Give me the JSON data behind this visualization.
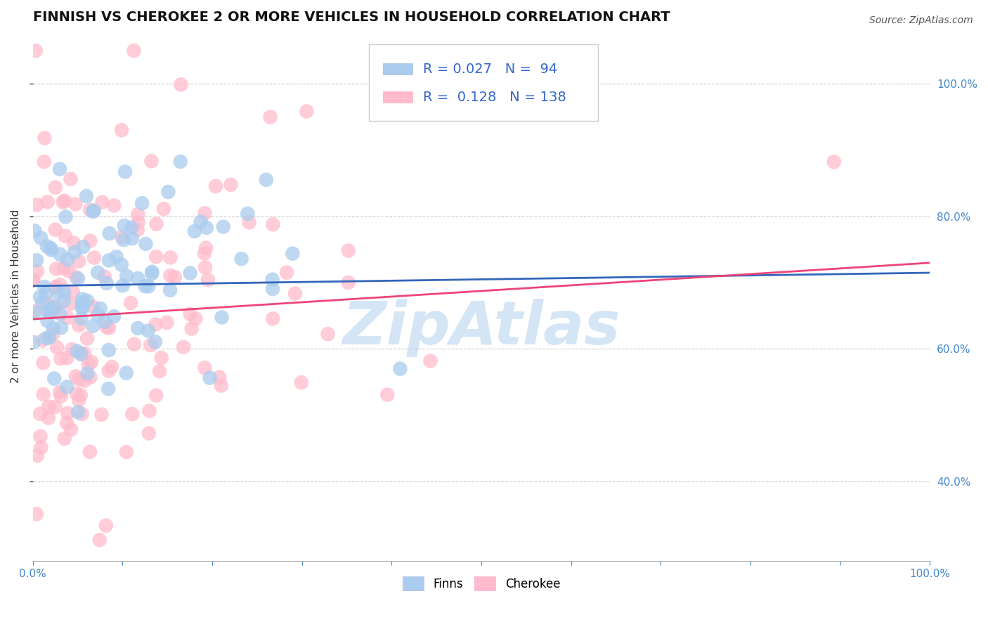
{
  "title": "FINNISH VS CHEROKEE 2 OR MORE VEHICLES IN HOUSEHOLD CORRELATION CHART",
  "source": "Source: ZipAtlas.com",
  "ylabel": "2 or more Vehicles in Household",
  "xlim": [
    0.0,
    1.0
  ],
  "ylim": [
    0.28,
    1.08
  ],
  "yticks": [
    0.4,
    0.6,
    0.8,
    1.0
  ],
  "ytick_labels": [
    "40.0%",
    "60.0%",
    "80.0%",
    "100.0%"
  ],
  "xtick_only_ends": [
    "0.0%",
    "100.0%"
  ],
  "grid_color": "#cccccc",
  "background_color": "#ffffff",
  "watermark": "ZipAtlas",
  "watermark_color": "#aaccee",
  "finns_color": "#aaccee",
  "cherokee_color": "#ffbbcc",
  "finns_line_color": "#3366bb",
  "cherokee_line_color": "#ee4477",
  "finns_R": 0.027,
  "finns_N": 94,
  "cherokee_R": 0.128,
  "cherokee_N": 138,
  "title_fontsize": 14,
  "axis_label_fontsize": 11,
  "tick_fontsize": 11,
  "legend_fontsize": 14,
  "finns_line_intercept": 0.695,
  "finns_line_slope": 0.02,
  "cherokee_line_intercept": 0.645,
  "cherokee_line_slope": 0.085
}
